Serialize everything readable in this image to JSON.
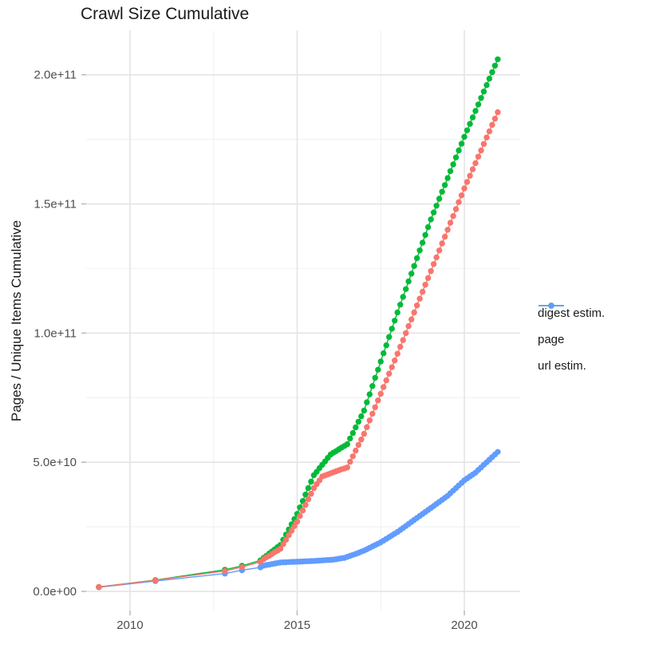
{
  "page": {
    "title": "Crawl Size Cumulative"
  },
  "axes": {
    "y_title": "Pages / Unique Items Cumulative",
    "x_title": "",
    "y_tick_labels": [
      "0.0e+00",
      "5.0e+10",
      "1.0e+11",
      "1.5e+11",
      "2.0e+11"
    ],
    "y_tick_values": [
      0,
      50,
      100,
      150,
      200
    ],
    "y_minor_values": [
      25,
      75,
      125,
      175
    ],
    "x_tick_labels": [
      "2010",
      "2015",
      "2020"
    ],
    "x_tick_values": [
      2010,
      2015,
      2020
    ],
    "x_minor_values": [
      2012.5,
      2017.5
    ]
  },
  "legend": {
    "items": [
      {
        "label": "digest estim.",
        "color": "#F8766D"
      },
      {
        "label": "page",
        "color": "#00BA38"
      },
      {
        "label": "url estim.",
        "color": "#619CFF"
      }
    ]
  },
  "chart_data": {
    "type": "scatter",
    "title": "Crawl Size Cumulative",
    "xlabel": "",
    "ylabel": "Pages / Unique Items Cumulative",
    "y_unit": "billions of pages (value × 1e9)",
    "x_range": [
      2008.69,
      2021.67
    ],
    "y_range": [
      -7.4,
      217.2
    ],
    "grid": "major+minor",
    "legend_position": "right",
    "x": [
      2009.07,
      2010.76,
      2012.84,
      2013.35,
      2013.9,
      2014.0,
      2014.083,
      2014.167,
      2014.25,
      2014.333,
      2014.417,
      2014.5,
      2014.583,
      2014.667,
      2014.75,
      2014.833,
      2014.917,
      2015.0,
      2015.083,
      2015.167,
      2015.25,
      2015.333,
      2015.417,
      2015.5,
      2015.583,
      2015.667,
      2015.75,
      2015.833,
      2015.917,
      2016.0,
      2016.083,
      2016.167,
      2016.25,
      2016.333,
      2016.417,
      2016.5,
      2016.583,
      2016.667,
      2016.75,
      2016.833,
      2016.917,
      2017.0,
      2017.083,
      2017.167,
      2017.25,
      2017.333,
      2017.417,
      2017.5,
      2017.583,
      2017.667,
      2017.75,
      2017.833,
      2017.917,
      2018.0,
      2018.083,
      2018.167,
      2018.25,
      2018.333,
      2018.417,
      2018.5,
      2018.583,
      2018.667,
      2018.75,
      2018.833,
      2018.917,
      2019.0,
      2019.083,
      2019.167,
      2019.25,
      2019.333,
      2019.417,
      2019.5,
      2019.583,
      2019.667,
      2019.75,
      2019.833,
      2019.917,
      2020.0,
      2020.083,
      2020.167,
      2020.25,
      2020.333,
      2020.417,
      2020.5,
      2020.583,
      2020.667,
      2020.75,
      2020.833,
      2020.917,
      2021.0
    ],
    "series": [
      {
        "name": "url estim.",
        "color": "#619CFF",
        "y": [
          1.6,
          4.0,
          6.9,
          8.2,
          9.3,
          10,
          10.2,
          10.4,
          10.6,
          10.8,
          11,
          11.2,
          11.25,
          11.3,
          11.35,
          11.4,
          11.45,
          11.5,
          11.55,
          11.6,
          11.65,
          11.7,
          11.75,
          11.8,
          11.87,
          11.94,
          12,
          12.09,
          12.16,
          12.23,
          12.3,
          12.48,
          12.65,
          12.83,
          13,
          13.38,
          13.75,
          14.13,
          14.5,
          14.93,
          15.37,
          15.8,
          16.33,
          16.87,
          17.4,
          17.93,
          18.47,
          19,
          19.67,
          20.33,
          21,
          21.67,
          22.33,
          23,
          23.78,
          24.55,
          25.33,
          26.1,
          26.88,
          27.65,
          28.43,
          29.2,
          29.98,
          30.75,
          31.53,
          32.3,
          33.08,
          33.87,
          34.65,
          35.43,
          36.22,
          37,
          38,
          39,
          40,
          41,
          42,
          43,
          43.75,
          44.5,
          45.25,
          46,
          47,
          48,
          49,
          50,
          51,
          52,
          53,
          54
        ]
      },
      {
        "name": "page",
        "color": "#00BA38",
        "y": [
          1.7,
          4.4,
          8.4,
          9.9,
          12,
          13,
          13.8,
          14.7,
          15.5,
          16.3,
          17.2,
          18,
          20,
          22,
          24,
          26,
          28,
          30,
          32.5,
          35,
          37.5,
          40,
          42.5,
          45,
          46.3,
          47.7,
          49,
          50.3,
          51.7,
          53,
          53.7,
          54.3,
          55,
          55.7,
          56.3,
          57,
          59.2,
          61.3,
          63.5,
          65.7,
          67.8,
          70,
          73.2,
          76.3,
          79.5,
          82.7,
          85.8,
          89,
          92.2,
          95.3,
          98.5,
          101.7,
          104.8,
          108,
          111,
          114,
          117,
          120,
          123,
          126,
          129,
          132,
          135,
          138,
          141,
          144,
          146.7,
          149.3,
          152,
          154.7,
          157.3,
          160,
          162.7,
          165.3,
          168,
          170.7,
          173.3,
          176,
          178.5,
          181,
          183.5,
          186,
          188.5,
          191,
          193.5,
          196,
          198.5,
          201,
          203.5,
          206
        ]
      },
      {
        "name": "digest estim.",
        "color": "#F8766D",
        "y": [
          1.7,
          4.3,
          7.9,
          9.4,
          11.4,
          12.5,
          13.2,
          13.8,
          14.5,
          15.2,
          15.8,
          16.5,
          18.3,
          20,
          21.8,
          23.5,
          25.3,
          27,
          29.2,
          31.3,
          33.5,
          35.7,
          37.8,
          40,
          41.5,
          43,
          44.5,
          44.9,
          45.3,
          45.7,
          46.1,
          46.5,
          46.9,
          47.3,
          47.6,
          48,
          50.2,
          52.3,
          54.5,
          56.7,
          58.8,
          61,
          63.6,
          66.2,
          68.8,
          71.3,
          73.9,
          76.5,
          79.1,
          81.7,
          84.3,
          86.8,
          89.4,
          92,
          94.7,
          97.3,
          100,
          102.7,
          105.3,
          108,
          110.7,
          113.3,
          116,
          118.7,
          121.3,
          124,
          126.7,
          129.3,
          132,
          134.7,
          137.3,
          140,
          142.7,
          145.3,
          148,
          150.7,
          153.3,
          156,
          158.5,
          160.9,
          163.4,
          165.8,
          168.3,
          170.7,
          173.2,
          175.7,
          178.1,
          180.6,
          183,
          185.5
        ]
      }
    ]
  }
}
